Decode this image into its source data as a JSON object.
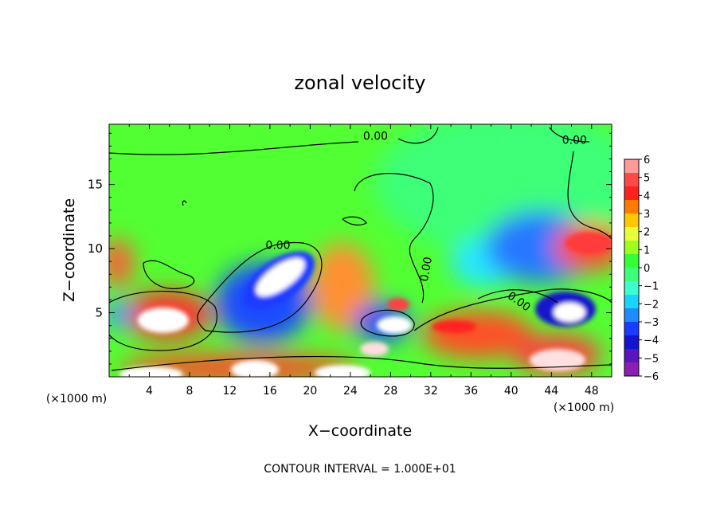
{
  "chart_data": {
    "type": "heatmap",
    "title": "zonal velocity",
    "xlabel": "X−coordinate",
    "ylabel": "Z−coordinate",
    "x_unit_left": "(×1000 m)",
    "x_unit_right": "(×1000 m)",
    "footer": "CONTOUR INTERVAL = 1.000E+01",
    "xlim": [
      0,
      50
    ],
    "ylim": [
      0,
      19.7
    ],
    "x_ticks": [
      4,
      8,
      12,
      16,
      20,
      24,
      28,
      32,
      36,
      40,
      44,
      48
    ],
    "y_ticks": [
      5,
      10,
      15
    ],
    "contour_labels": [
      {
        "text": "0.00",
        "x": 26.5,
        "y": 18.8
      },
      {
        "text": "0.00",
        "x": 46.3,
        "y": 18.5
      },
      {
        "text": "0.00",
        "x": 16.8,
        "y": 10.3
      },
      {
        "text": "0.00",
        "x": 31.5,
        "y": 8.4,
        "rotate": -80
      },
      {
        "text": "0.00",
        "x": 40.8,
        "y": 5.9,
        "rotate": 35
      }
    ],
    "colorbar": {
      "labels": [
        "6",
        "5",
        "4",
        "3",
        "2",
        "1",
        "0",
        "−1",
        "−2",
        "−3",
        "−4",
        "−5",
        "−6"
      ],
      "min": -6,
      "max": 6,
      "colors": [
        "#ff9a9a",
        "#ff4848",
        "#ff2020",
        "#ff7a00",
        "#ffc800",
        "#e8ff3a",
        "#9eff1e",
        "#34ff34",
        "#3cff7a",
        "#3cffd0",
        "#18d4ff",
        "#1e8cff",
        "#1a3cff",
        "#1414d0",
        "#5a14c0",
        "#8c1eb4"
      ]
    }
  }
}
